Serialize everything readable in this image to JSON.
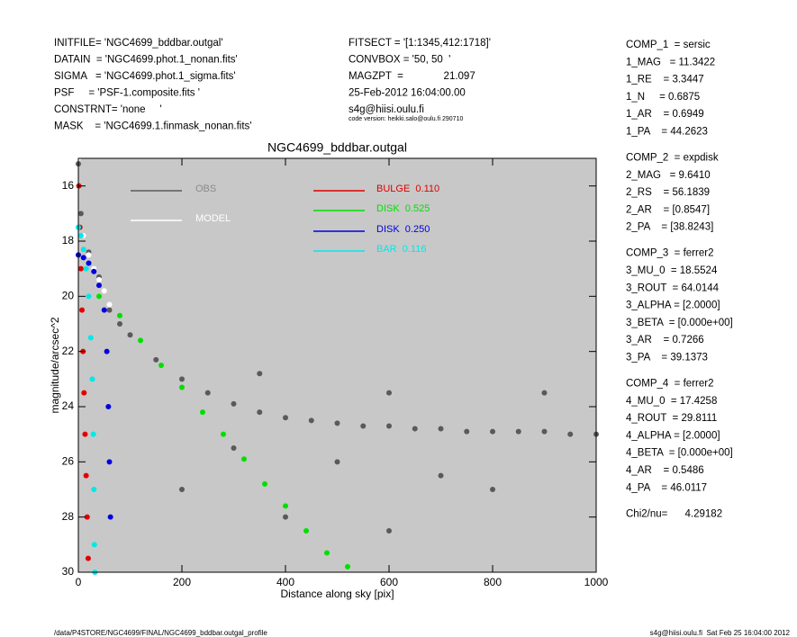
{
  "header": {
    "left": [
      "INITFILE= 'NGC4699_bddbar.outgal'",
      "DATAIN  = 'NGC4699.phot.1_nonan.fits'",
      "SIGMA   = 'NGC4699.phot.1_sigma.fits'",
      "PSF     = 'PSF-1.composite.fits '",
      "CONSTRNT= 'none     '",
      "MASK    = 'NGC4699.1.finmask_nonan.fits'"
    ],
    "middle": [
      "FITSECT = '[1:1345,412:1718]'",
      "CONVBOX = '50, 50  '",
      "MAGZPT  =              21.097",
      "25-Feb-2012 16:04:00.00",
      "s4g@hiisi.oulu.fi"
    ],
    "code": "code version: heikki.salo@oulu.fi 290710"
  },
  "params": [
    [
      "COMP_1  = sersic",
      "1_MAG   = 11.3422",
      "1_RE    = 3.3447",
      "1_N     = 0.6875",
      "1_AR    = 0.6949",
      "1_PA    = 44.2623"
    ],
    [
      "COMP_2  = expdisk",
      "2_MAG   = 9.6410",
      "2_RS    = 56.1839",
      "2_AR    = [0.8547]",
      "2_PA    = [38.8243]"
    ],
    [
      "COMP_3  = ferrer2",
      "3_MU_0  = 18.5524",
      "3_ROUT  = 64.0144",
      "3_ALPHA = [2.0000]",
      "3_BETA  = [0.000e+00]",
      "3_AR    = 0.7266",
      "3_PA    = 39.1373"
    ],
    [
      "COMP_4  = ferrer2",
      "4_MU_0  = 17.4258",
      "4_ROUT  = 29.8111",
      "4_ALPHA = [2.0000]",
      "4_BETA  = [0.000e+00]",
      "4_AR    = 0.5486",
      "4_PA    = 46.0117"
    ],
    [
      "Chi2/nu=      4.29182"
    ]
  ],
  "footer": {
    "left": "/data/P4STORE/NGC4699/FINAL/NGC4699_bddbar.outgal_profile",
    "right": "s4g@hiisi.oulu.fi  Sat Feb 25 16:04:00 2012"
  },
  "chart_data": {
    "type": "scatter",
    "title": "NGC4699_bddbar.outgal",
    "x_label": "Distance along sky [pix]",
    "y_label": "magnitude/arcsec^2",
    "xlim": [
      0,
      1000
    ],
    "ylim": [
      15,
      30
    ],
    "y_inverted": true,
    "xticks": [
      0,
      200,
      400,
      600,
      800,
      1000
    ],
    "yticks": [
      16,
      18,
      20,
      22,
      24,
      26,
      28,
      30
    ],
    "background": "#c8c8c8",
    "series": [
      {
        "name": "OBS",
        "color": "#5a5a5a",
        "x": [
          0,
          5,
          10,
          20,
          40,
          60,
          80,
          100,
          150,
          200,
          250,
          300,
          350,
          400,
          450,
          500,
          550,
          600,
          650,
          700,
          750,
          800,
          850,
          900,
          950,
          1000,
          300,
          500,
          700,
          200,
          400,
          600,
          800,
          900,
          600,
          350
        ],
        "values": [
          15.2,
          17,
          17.8,
          18.4,
          19.3,
          20.5,
          21,
          21.4,
          22.3,
          23,
          23.5,
          23.9,
          24.2,
          24.4,
          24.5,
          24.6,
          24.7,
          24.7,
          24.8,
          24.8,
          24.9,
          24.9,
          24.9,
          24.9,
          25,
          25,
          25.5,
          26,
          26.5,
          27,
          28,
          28.5,
          27,
          23.5,
          23.5,
          22.8
        ]
      },
      {
        "name": "MODEL",
        "color": "#ffffff",
        "x": [
          0,
          10,
          20,
          30,
          40,
          50,
          60
        ],
        "values": [
          15,
          17.8,
          18.5,
          19,
          19.4,
          19.8,
          20.3
        ]
      },
      {
        "name": "BULGE  0.110",
        "color": "#e00000",
        "x": [
          1,
          3,
          5,
          7,
          9,
          11,
          13,
          15,
          17,
          19
        ],
        "values": [
          16,
          17.5,
          19,
          20.5,
          22,
          23.5,
          25,
          26.5,
          28,
          29.5
        ]
      },
      {
        "name": "DISK  0.525",
        "color": "#00e000",
        "x": [
          40,
          80,
          120,
          160,
          200,
          240,
          280,
          320,
          360,
          400,
          440,
          480,
          520
        ],
        "values": [
          20,
          20.7,
          21.6,
          22.5,
          23.3,
          24.2,
          25,
          25.9,
          26.8,
          27.6,
          28.5,
          29.3,
          29.8
        ]
      },
      {
        "name": "DISK  0.250",
        "color": "#0000e0",
        "x": [
          0,
          10,
          20,
          30,
          40,
          50,
          55,
          58,
          60,
          62
        ],
        "values": [
          18.5,
          18.6,
          18.8,
          19.1,
          19.6,
          20.5,
          22,
          24,
          26,
          28
        ]
      },
      {
        "name": "BAR  0.116",
        "color": "#00e8e8",
        "x": [
          0,
          5,
          10,
          15,
          20,
          24,
          27,
          29,
          30,
          31,
          32
        ],
        "values": [
          17.5,
          17.8,
          18.3,
          19,
          20,
          21.5,
          23,
          25,
          27,
          29,
          30
        ]
      }
    ]
  }
}
